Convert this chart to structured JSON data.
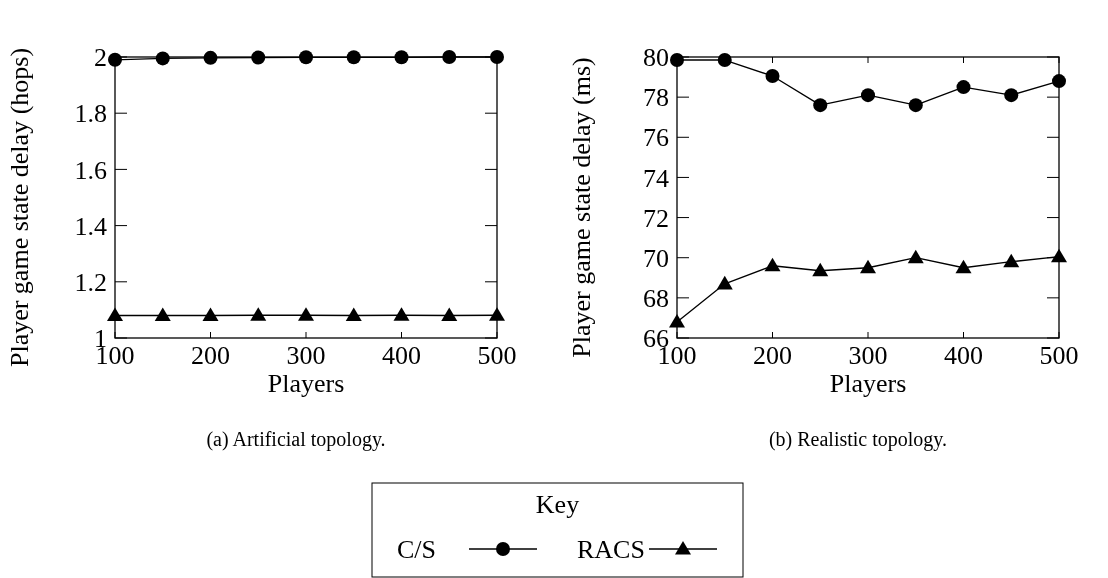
{
  "chart_data": [
    {
      "type": "line",
      "xlabel": "Players",
      "ylabel": "Player game state delay (hops)",
      "x": [
        100,
        150,
        200,
        250,
        300,
        350,
        400,
        450,
        500
      ],
      "xlim": [
        100,
        500
      ],
      "xticks": [
        100,
        200,
        300,
        400,
        500
      ],
      "ylim": [
        1,
        2
      ],
      "yticks": [
        1,
        1.2,
        1.4,
        1.6,
        1.8,
        2
      ],
      "legend": "bottom",
      "legend_title": "Key",
      "annotations": [
        "(a) Artificial topology."
      ],
      "series": [
        {
          "name": "C/S",
          "color": "#000000",
          "marker": "circle",
          "values": [
            1.99,
            1.995,
            1.997,
            1.998,
            1.999,
            1.999,
            1.999,
            2,
            2
          ]
        },
        {
          "name": "RACS",
          "color": "#000000",
          "marker": "triangle",
          "values": [
            1.08,
            1.08,
            1.08,
            1.081,
            1.081,
            1.08,
            1.081,
            1.08,
            1.081
          ]
        }
      ]
    },
    {
      "type": "line",
      "xlabel": "Players",
      "ylabel": "Player game state delay (ms)",
      "x": [
        100,
        150,
        200,
        250,
        300,
        350,
        400,
        450,
        500
      ],
      "xlim": [
        100,
        500
      ],
      "xticks": [
        100,
        200,
        300,
        400,
        500
      ],
      "ylim": [
        66,
        80
      ],
      "yticks": [
        66,
        68,
        70,
        72,
        74,
        76,
        78,
        80
      ],
      "annotations": [
        "(b) Realistic topology."
      ],
      "series": [
        {
          "color": "#000000",
          "marker": "circle",
          "values": [
            79.85,
            79.85,
            79.05,
            77.6,
            78.1,
            77.6,
            78.5,
            78.1,
            78.8
          ]
        },
        {
          "color": "#000000",
          "marker": "triangle",
          "values": [
            66.8,
            68.7,
            69.6,
            69.35,
            69.5,
            70,
            69.5,
            69.8,
            70.05
          ]
        }
      ]
    }
  ]
}
